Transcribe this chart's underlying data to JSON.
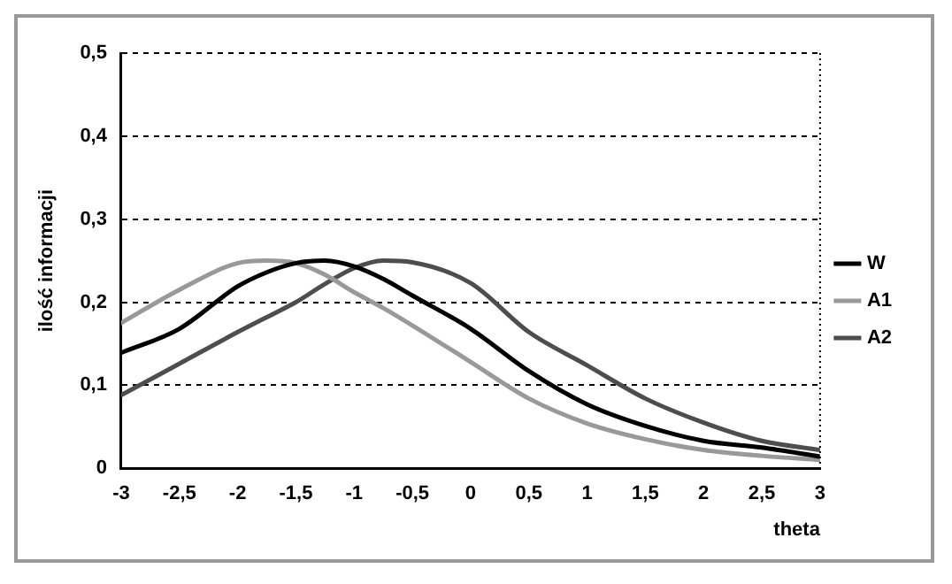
{
  "chart_data": {
    "type": "line",
    "xlabel": "theta",
    "ylabel": "ilość informacji",
    "x": [
      -3,
      -2.5,
      -2,
      -1.75,
      -1.5,
      -1.25,
      -1,
      -0.75,
      -0.5,
      0,
      0.5,
      1,
      1.5,
      2,
      2.5,
      3
    ],
    "series": [
      {
        "name": "W",
        "color": "#000000",
        "values": [
          0.139,
          0.168,
          0.219,
          0.236,
          0.247,
          0.25,
          0.243,
          0.228,
          0.208,
          0.168,
          0.117,
          0.077,
          0.051,
          0.033,
          0.025,
          0.014
        ]
      },
      {
        "name": "A1",
        "color": "#999999",
        "values": [
          0.175,
          0.215,
          0.247,
          0.25,
          0.247,
          0.233,
          0.212,
          0.193,
          0.172,
          0.128,
          0.084,
          0.054,
          0.035,
          0.022,
          0.015,
          0.01
        ]
      },
      {
        "name": "A2",
        "color": "#4d4d4d",
        "values": [
          0.088,
          0.126,
          0.164,
          0.182,
          0.2,
          0.222,
          0.241,
          0.25,
          0.248,
          0.223,
          0.164,
          0.124,
          0.084,
          0.055,
          0.033,
          0.022
        ]
      }
    ],
    "xlim": [
      -3,
      3
    ],
    "xticks": [
      -3,
      {
        "value": -2.5,
        "label": "-2,5"
      },
      -2,
      {
        "value": -1.5,
        "label": "-1,5"
      },
      -1,
      {
        "value": -0.5,
        "label": "-0,5"
      },
      0,
      {
        "value": 0.5,
        "label": "0,5"
      },
      1,
      {
        "value": 1.5,
        "label": "1,5"
      },
      2,
      {
        "value": 2.5,
        "label": "2,5"
      },
      3
    ],
    "ylim": [
      0,
      0.5
    ],
    "yticks": [
      0,
      {
        "value": 0.1,
        "label": "0,1"
      },
      {
        "value": 0.2,
        "label": "0,2"
      },
      {
        "value": 0.3,
        "label": "0,3"
      },
      {
        "value": 0.4,
        "label": "0,4"
      },
      {
        "value": 0.5,
        "label": "0,5"
      }
    ],
    "grid": "y",
    "legend": "right",
    "marker": "none",
    "line_style": "solid"
  }
}
